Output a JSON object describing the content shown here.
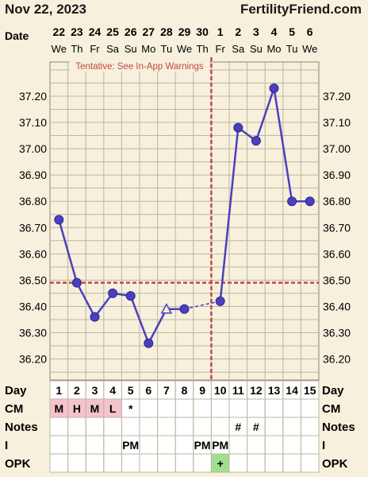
{
  "header": {
    "date": "Nov 22, 2023",
    "brand": "FertilityFriend.com"
  },
  "labels": {
    "date_row": "Date",
    "day_row": "Day",
    "cm_row": "CM",
    "notes_row": "Notes",
    "i_row": "I",
    "opk_row": "OPK"
  },
  "chart_data": {
    "type": "line",
    "title": "",
    "xlabel": "",
    "ylabel": "",
    "dates": [
      "22",
      "23",
      "24",
      "25",
      "26",
      "27",
      "28",
      "29",
      "30",
      "1",
      "2",
      "3",
      "4",
      "5",
      "6"
    ],
    "weekdays": [
      "We",
      "Th",
      "Fr",
      "Sa",
      "Su",
      "Mo",
      "Tu",
      "We",
      "Th",
      "Fr",
      "Sa",
      "Su",
      "Mo",
      "Tu",
      "We"
    ],
    "days": [
      "1",
      "2",
      "3",
      "4",
      "5",
      "6",
      "7",
      "8",
      "9",
      "10",
      "11",
      "12",
      "13",
      "14",
      "15"
    ],
    "temps": [
      36.73,
      36.49,
      36.36,
      36.45,
      36.44,
      36.26,
      36.39,
      36.39,
      null,
      36.42,
      37.08,
      37.03,
      37.23,
      36.8,
      36.8
    ],
    "open_marker_days": [
      7
    ],
    "dashed_segments": [
      [
        8,
        10
      ]
    ],
    "yticks": [
      "37.20",
      "37.10",
      "37.00",
      "36.90",
      "36.80",
      "36.70",
      "36.60",
      "36.50",
      "36.40",
      "36.30",
      "36.20"
    ],
    "ylim": [
      36.12,
      37.33
    ],
    "coverline": 36.49,
    "ovulation_day": 10,
    "ovulation_note": "Tentative: See In-App Warnings",
    "cm": [
      "M",
      "H",
      "M",
      "L",
      "*",
      "",
      "",
      "",
      "",
      "",
      "",
      "",
      "",
      "",
      ""
    ],
    "notes": [
      "",
      "",
      "",
      "",
      "",
      "",
      "",
      "",
      "",
      "",
      "#",
      "#",
      "",
      "",
      ""
    ],
    "intercourse": [
      "",
      "",
      "",
      "",
      "PM",
      "",
      "",
      "",
      "PM",
      "PM",
      "",
      "",
      "",
      "",
      ""
    ],
    "opk": [
      "",
      "",
      "",
      "",
      "",
      "",
      "",
      "",
      "",
      "+",
      "",
      "",
      "",
      "",
      ""
    ],
    "colors": {
      "line": "#4a3fbf",
      "coverline": "#c84545",
      "grid": "#bdb6a0",
      "cm_fill": "#f4c3cc",
      "opk_fill": "#9ee08d",
      "note": "#c84545"
    }
  }
}
